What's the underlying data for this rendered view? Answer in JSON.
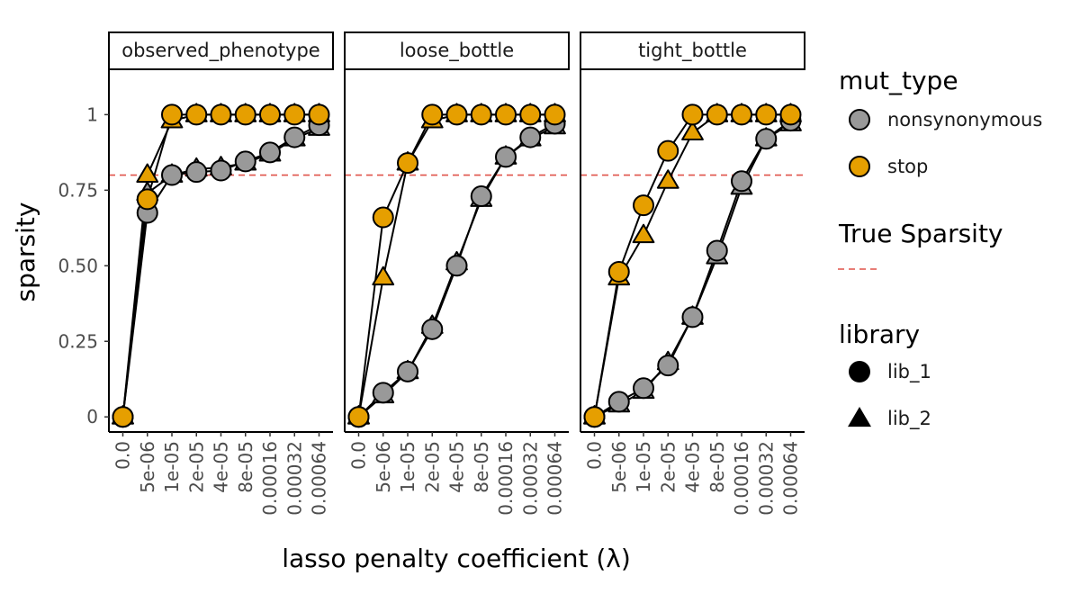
{
  "chart_data": {
    "type": "line",
    "facets": [
      "observed_phenotype",
      "loose_bottle",
      "tight_bottle"
    ],
    "x_categories": [
      "0.0",
      "5e-06",
      "1e-05",
      "2e-05",
      "4e-05",
      "8e-05",
      "0.00016",
      "0.00032",
      "0.00064"
    ],
    "xlabel": "lasso penalty coefficient (λ)",
    "ylabel": "sparsity",
    "ylim": [
      -0.05,
      1.15
    ],
    "y_ticks": [
      0,
      0.25,
      0.5,
      0.75,
      1
    ],
    "y_tick_labels": [
      "0",
      "0.25",
      "0.50",
      "0.75",
      "1"
    ],
    "reference_line": {
      "value": 0.8,
      "label": "True Sparsity",
      "color": "#e0524a",
      "style": "dashed"
    },
    "colors": {
      "nonsynonymous": "#999999",
      "stop": "#e69f00"
    },
    "series": [
      {
        "facet": "observed_phenotype",
        "mut_type": "nonsynonymous",
        "library": "lib_1",
        "values": [
          0.0,
          0.675,
          0.8,
          0.81,
          0.815,
          0.845,
          0.875,
          0.925,
          0.965
        ]
      },
      {
        "facet": "observed_phenotype",
        "mut_type": "nonsynonymous",
        "library": "lib_2",
        "values": [
          0.0,
          0.74,
          0.8,
          0.82,
          0.825,
          0.84,
          0.87,
          0.92,
          0.955
        ]
      },
      {
        "facet": "observed_phenotype",
        "mut_type": "stop",
        "library": "lib_1",
        "values": [
          0.0,
          0.72,
          1.0,
          1.0,
          1.0,
          1.0,
          1.0,
          1.0,
          1.0
        ]
      },
      {
        "facet": "observed_phenotype",
        "mut_type": "stop",
        "library": "lib_2",
        "values": [
          0.0,
          0.8,
          0.98,
          1.0,
          1.0,
          1.0,
          1.0,
          1.0,
          1.0
        ]
      },
      {
        "facet": "loose_bottle",
        "mut_type": "nonsynonymous",
        "library": "lib_1",
        "values": [
          0.0,
          0.08,
          0.15,
          0.29,
          0.5,
          0.73,
          0.86,
          0.925,
          0.97
        ]
      },
      {
        "facet": "loose_bottle",
        "mut_type": "nonsynonymous",
        "library": "lib_2",
        "values": [
          0.0,
          0.07,
          0.15,
          0.3,
          0.51,
          0.72,
          0.86,
          0.92,
          0.96
        ]
      },
      {
        "facet": "loose_bottle",
        "mut_type": "stop",
        "library": "lib_1",
        "values": [
          0.0,
          0.66,
          0.84,
          1.0,
          1.0,
          1.0,
          1.0,
          1.0,
          1.0
        ]
      },
      {
        "facet": "loose_bottle",
        "mut_type": "stop",
        "library": "lib_2",
        "values": [
          0.0,
          0.46,
          0.84,
          0.98,
          1.0,
          1.0,
          1.0,
          1.0,
          1.0
        ]
      },
      {
        "facet": "tight_bottle",
        "mut_type": "nonsynonymous",
        "library": "lib_1",
        "values": [
          0.0,
          0.05,
          0.095,
          0.17,
          0.33,
          0.55,
          0.78,
          0.92,
          0.98
        ]
      },
      {
        "facet": "tight_bottle",
        "mut_type": "nonsynonymous",
        "library": "lib_2",
        "values": [
          0.0,
          0.04,
          0.085,
          0.18,
          0.33,
          0.53,
          0.76,
          0.92,
          0.97
        ]
      },
      {
        "facet": "tight_bottle",
        "mut_type": "stop",
        "library": "lib_1",
        "values": [
          0.0,
          0.48,
          0.7,
          0.88,
          1.0,
          1.0,
          1.0,
          1.0,
          1.0
        ]
      },
      {
        "facet": "tight_bottle",
        "mut_type": "stop",
        "library": "lib_2",
        "values": [
          0.0,
          0.46,
          0.6,
          0.78,
          0.94,
          1.0,
          1.0,
          1.0,
          1.0
        ]
      }
    ],
    "legends": [
      {
        "title": "mut_type",
        "type": "fill",
        "entries": [
          {
            "label": "nonsynonymous",
            "key": "nonsynonymous"
          },
          {
            "label": "stop",
            "key": "stop"
          }
        ]
      },
      {
        "title": "True Sparsity",
        "type": "line",
        "entries": []
      },
      {
        "title": "library",
        "type": "shape",
        "entries": [
          {
            "label": "lib_1",
            "shape": "circle"
          },
          {
            "label": "lib_2",
            "shape": "triangle"
          }
        ]
      }
    ]
  }
}
